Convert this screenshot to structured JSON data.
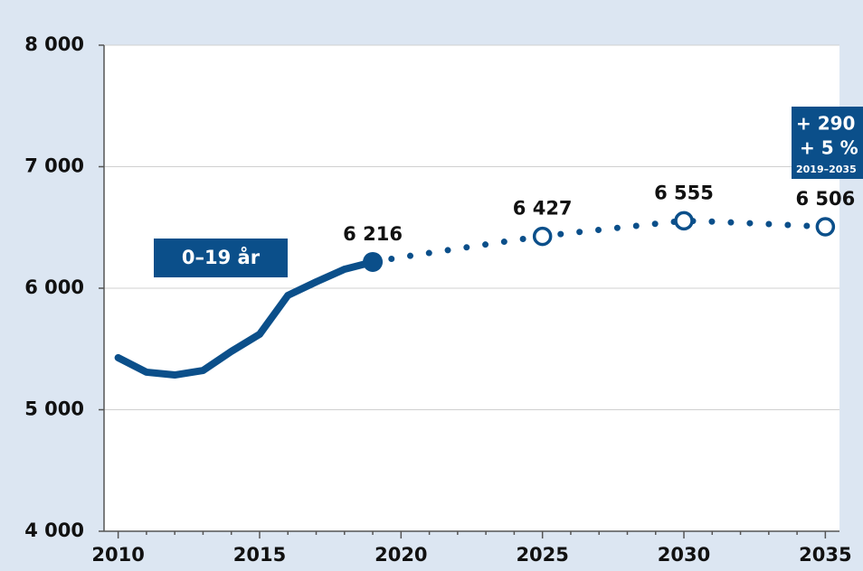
{
  "chart_data": {
    "type": "line",
    "color": "#0b4f8a",
    "xlim": [
      2009.5,
      2035.5
    ],
    "xticks": [
      2010,
      2015,
      2020,
      2025,
      2030,
      2035
    ],
    "xminorticks": [
      2011,
      2012,
      2013,
      2014,
      2016,
      2017,
      2018,
      2019,
      2021,
      2022,
      2023,
      2024,
      2026,
      2027,
      2028,
      2029,
      2031,
      2032,
      2033,
      2034
    ],
    "ylim": [
      4000,
      8000
    ],
    "yticks": [
      {
        "value": 4000,
        "label": "4 000"
      },
      {
        "value": 5000,
        "label": "5 000"
      },
      {
        "value": 6000,
        "label": "6 000"
      },
      {
        "value": 7000,
        "label": "7 000"
      },
      {
        "value": 8000,
        "label": "8 000"
      }
    ],
    "grid": true,
    "series": [
      {
        "style": "solid",
        "x": [
          2010,
          2011,
          2012,
          2013,
          2014,
          2015,
          2016,
          2017,
          2018,
          2019
        ],
        "values": [
          5428,
          5309,
          5286,
          5323,
          5480,
          5621,
          5941,
          6052,
          6156,
          6216
        ],
        "value_labels": [
          null,
          null,
          null,
          null,
          null,
          null,
          null,
          null,
          null,
          "6 216"
        ]
      },
      {
        "style": "dotted",
        "x": [
          2019,
          2020,
          2021,
          2022,
          2023,
          2024,
          2025,
          2026,
          2027,
          2028,
          2029,
          2030,
          2031,
          2032,
          2033,
          2034,
          2035
        ],
        "values": [
          6216,
          6255,
          6290,
          6325,
          6360,
          6395,
          6427,
          6455,
          6480,
          6505,
          6530,
          6555,
          6548,
          6538,
          6528,
          6517,
          6506
        ],
        "value_labels": [
          null,
          null,
          null,
          null,
          null,
          null,
          "6 427",
          null,
          null,
          null,
          null,
          "6 555",
          null,
          null,
          null,
          null,
          "6 506"
        ]
      }
    ],
    "annotations": [
      "0–19 år",
      "+ 290",
      "+ 5 %",
      "2019–2035"
    ]
  }
}
